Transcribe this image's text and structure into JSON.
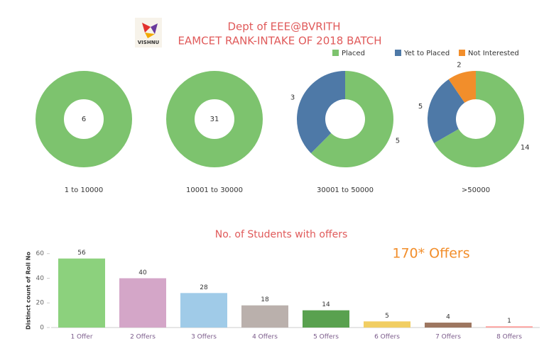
{
  "header": {
    "logo": "VISHNU",
    "title": "Dept of EEE@BVRITH",
    "subtitle": "EAMCET RANK-INTAKE OF 2018 BATCH",
    "legend": [
      {
        "name": "Placed",
        "color": "#7dc36e"
      },
      {
        "name": "Yet to Placed",
        "color": "#4e79a7"
      },
      {
        "name": "Not Interested",
        "color": "#f28e2b"
      }
    ]
  },
  "chart_data": [
    {
      "type": "donut",
      "label": "1 to 10000",
      "values": [
        6,
        null,
        null
      ]
    },
    {
      "type": "donut",
      "label": "10001 to 30000",
      "values": [
        31,
        null,
        null
      ]
    },
    {
      "type": "donut",
      "label": "30001 to 50000",
      "values": [
        5,
        3,
        null
      ]
    },
    {
      "type": "donut",
      "label": ">50000",
      "values": [
        14,
        5,
        2
      ]
    },
    {
      "type": "bar",
      "title": "No. of  Students with offers",
      "y_label": "Distinct count of Roll No",
      "annotation": "170* Offers",
      "categories": [
        "1 Offer",
        "2 Offers",
        "3 Offers",
        "4 Offers",
        "5 Offers",
        "6 Offers",
        "7 Offers",
        "8 Offers"
      ],
      "values": [
        56,
        40,
        28,
        18,
        14,
        5,
        4,
        1
      ],
      "colors": [
        "#8cd17d",
        "#d4a6c8",
        "#a0cbe8",
        "#bab0ac",
        "#59a14f",
        "#f1ce63",
        "#9d7660",
        "#ff9d9a"
      ],
      "ylim": [
        0,
        65
      ],
      "yticks": [
        0,
        20,
        40,
        60
      ]
    }
  ]
}
